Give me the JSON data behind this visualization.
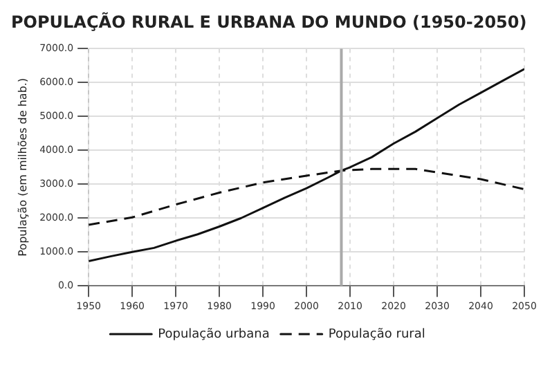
{
  "chart_data": {
    "type": "line",
    "title": "POPULAÇÃO RURAL E URBANA DO MUNDO (1950-2050)",
    "ylabel": "População (em milhões de hab.)",
    "xlim": [
      1950,
      2050
    ],
    "xticks": [
      1950,
      1960,
      1970,
      1980,
      1990,
      2000,
      2010,
      2020,
      2030,
      2040,
      2050
    ],
    "ylim": [
      0,
      7000
    ],
    "yticks": [
      {
        "value": 0,
        "label": "0.0"
      },
      {
        "value": 1000,
        "label": "1000.0"
      },
      {
        "value": 2000,
        "label": "2000.0"
      },
      {
        "value": 3000,
        "label": "3000.0"
      },
      {
        "value": 4000,
        "label": "4000.0"
      },
      {
        "value": 5000,
        "label": "5000.0"
      },
      {
        "value": 6000,
        "label": "6000.0"
      },
      {
        "value": 7000,
        "label": "7000.0"
      }
    ],
    "grid": true,
    "legend": "bottom",
    "marker": "none",
    "ref_lines": [
      {
        "axis": "x",
        "value": 2008,
        "color": "#aaaaaa"
      }
    ],
    "series": [
      {
        "name": "População urbana",
        "color": "#111111",
        "line_style": "solid",
        "x": [
          1950,
          1955,
          1960,
          1965,
          1970,
          1975,
          1980,
          1985,
          1990,
          1995,
          2000,
          2005,
          2008,
          2010,
          2015,
          2020,
          2025,
          2030,
          2035,
          2040,
          2045,
          2050
        ],
        "values": [
          730,
          870,
          1000,
          1120,
          1330,
          1520,
          1750,
          2000,
          2300,
          2600,
          2880,
          3200,
          3400,
          3500,
          3800,
          4200,
          4550,
          4950,
          5350,
          5700,
          6050,
          6400
        ]
      },
      {
        "name": "População rural",
        "color": "#111111",
        "line_style": "dashed",
        "x": [
          1950,
          1960,
          1970,
          1980,
          1990,
          2000,
          2008,
          2015,
          2020,
          2025,
          2030,
          2040,
          2050
        ],
        "values": [
          1800,
          2020,
          2400,
          2750,
          3050,
          3250,
          3400,
          3450,
          3450,
          3450,
          3350,
          3150,
          2850
        ]
      }
    ]
  }
}
